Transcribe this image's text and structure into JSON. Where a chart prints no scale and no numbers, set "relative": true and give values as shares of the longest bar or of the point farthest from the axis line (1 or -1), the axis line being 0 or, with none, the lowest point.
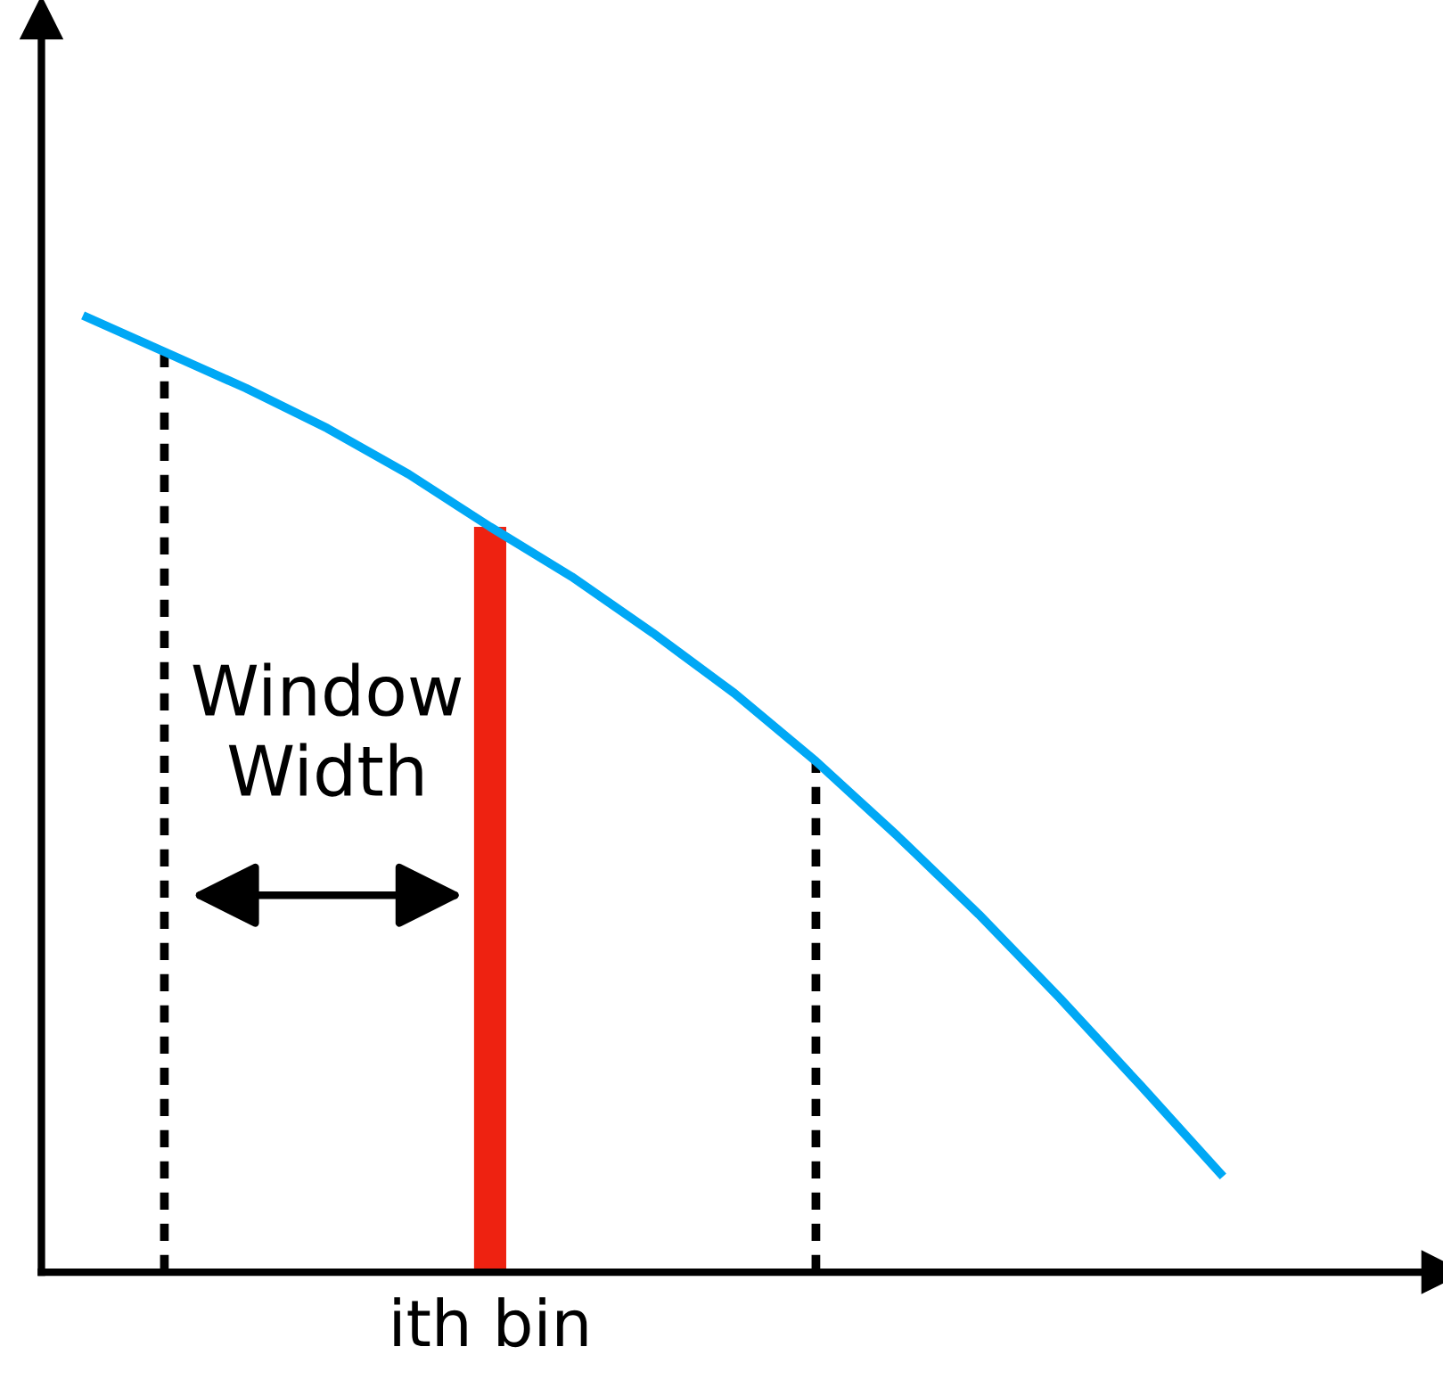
{
  "chart_data": {
    "type": "line",
    "relative": true,
    "categories": [
      null,
      null,
      null,
      null,
      null,
      null,
      null,
      null,
      null,
      null,
      null,
      null,
      null,
      null,
      null
    ],
    "series": [
      {
        "color": "#00a8f5",
        "values": [
          1.0,
          0.962,
          0.924,
          0.882,
          0.834,
          0.779,
          0.727,
          0.668,
          0.605,
          0.534,
          0.456,
          0.374,
          0.286,
          0.194,
          0.1
        ]
      }
    ],
    "xlabel": "ith bin",
    "annotations": [
      "Window Width"
    ],
    "grid": false,
    "legend": false,
    "marker": "none"
  }
}
